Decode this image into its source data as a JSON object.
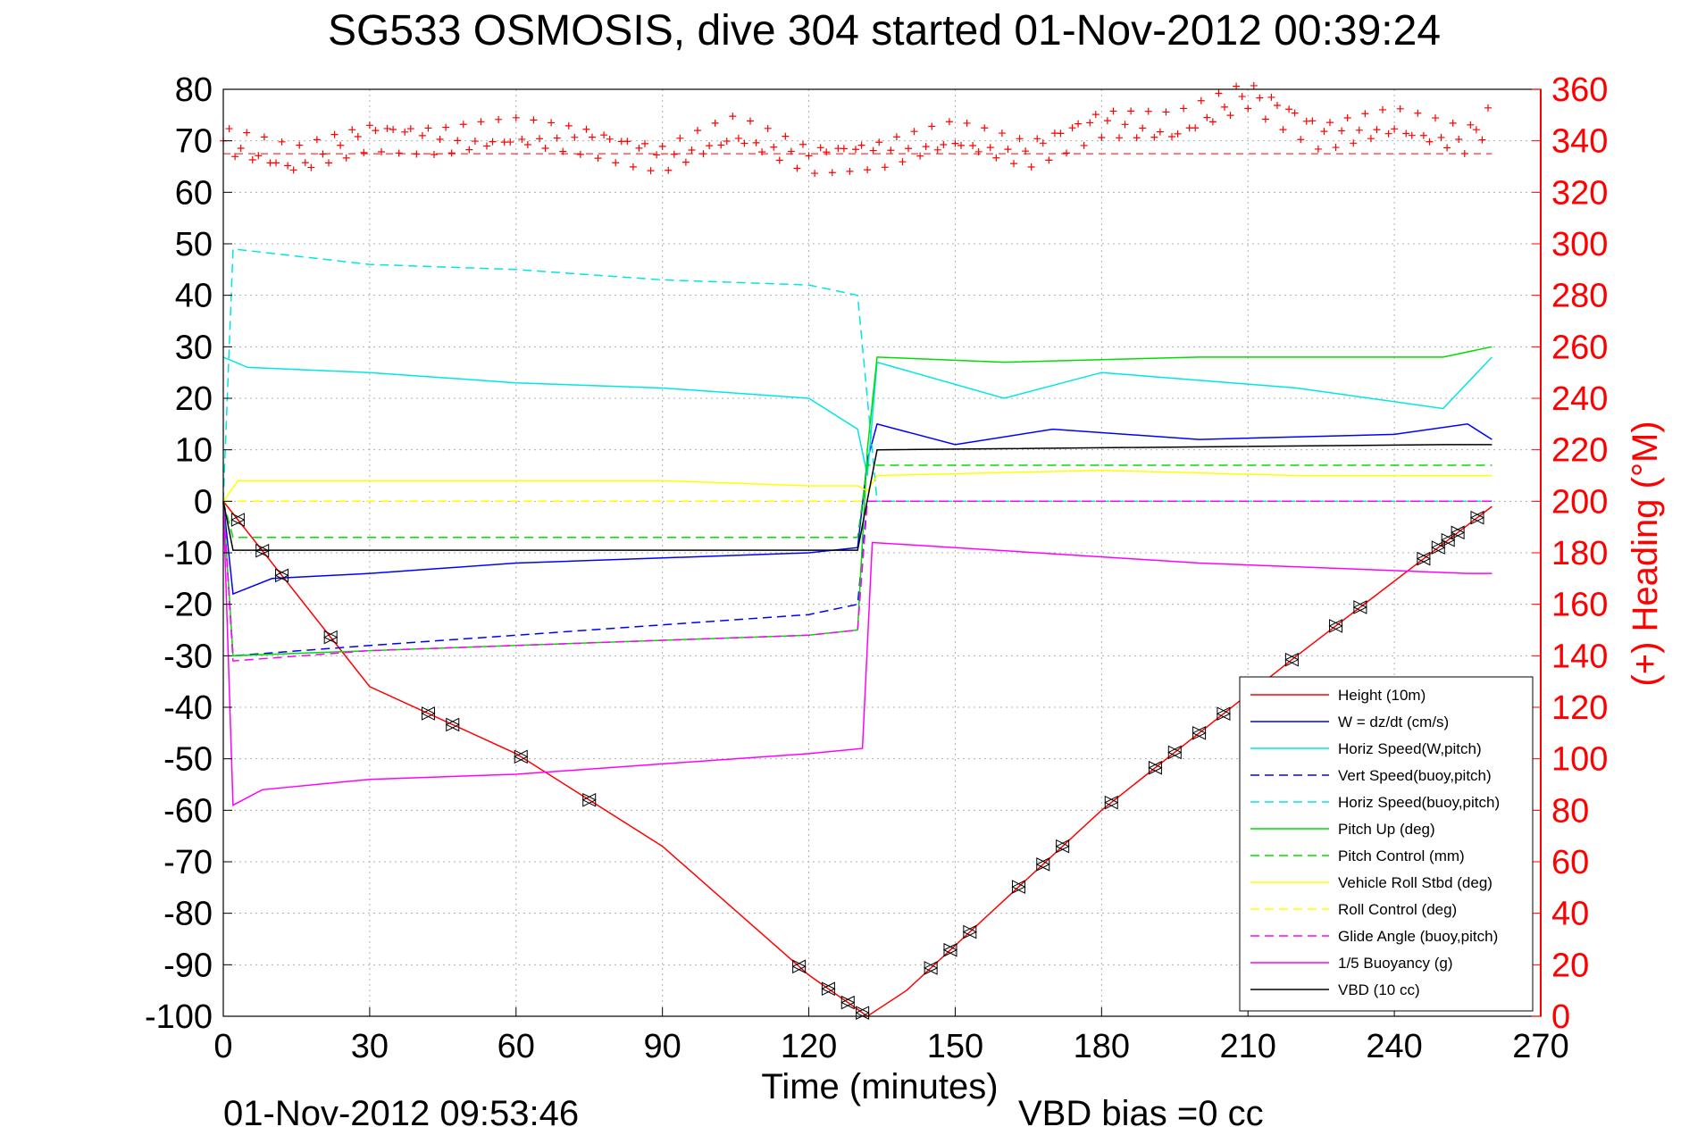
{
  "chart_data": {
    "type": "line",
    "title": "SG533 OSMOSIS, dive 304 started 01-Nov-2012 00:39:24",
    "xlabel": "Time (minutes)",
    "ylabel": "",
    "y2label": "(+) Heading (°M)",
    "footer_date": "01-Nov-2012 09:53:46",
    "footer_note": "VBD bias =0 cc",
    "xlim": [
      0,
      270
    ],
    "ylim": [
      -100,
      80
    ],
    "y2lim": [
      0,
      360
    ],
    "xticks": [
      "0",
      "30",
      "60",
      "90",
      "120",
      "150",
      "180",
      "210",
      "240",
      "270"
    ],
    "yticks": [
      "80",
      "70",
      "60",
      "50",
      "40",
      "30",
      "20",
      "10",
      "0",
      "-10",
      "-20",
      "-30",
      "-40",
      "-50",
      "-60",
      "-70",
      "-80",
      "-90",
      "-100"
    ],
    "y2ticks": [
      "360",
      "340",
      "320",
      "300",
      "280",
      "260",
      "240",
      "220",
      "200",
      "180",
      "160",
      "140",
      "120",
      "100",
      "80",
      "60",
      "40",
      "20",
      "0"
    ],
    "grid": true,
    "legend_position": "bottom-right",
    "series": [
      {
        "name": "Height (10m)",
        "color": "#ff0000",
        "style": "solid",
        "x": [
          0,
          30,
          60,
          90,
          120,
          132,
          140,
          180,
          220,
          260
        ],
        "values": [
          0,
          -36,
          -49,
          -67,
          -92,
          -100,
          -95,
          -60,
          -30,
          -1
        ]
      },
      {
        "name": "W = dz/dt (cm/s)",
        "color": "#0000ff",
        "style": "solid",
        "x": [
          0,
          2,
          10,
          30,
          60,
          90,
          120,
          130,
          132,
          134,
          150,
          170,
          200,
          240,
          255,
          260
        ],
        "values": [
          0,
          -18,
          -15,
          -14,
          -12,
          -11,
          -10,
          -9,
          8,
          15,
          11,
          14,
          12,
          13,
          15,
          12
        ]
      },
      {
        "name": "Horiz Speed(W,pitch)",
        "color": "#00e5e5",
        "style": "solid",
        "x": [
          0,
          5,
          30,
          60,
          90,
          120,
          130,
          132,
          134,
          160,
          180,
          220,
          250,
          260
        ],
        "values": [
          28,
          26,
          25,
          23,
          22,
          20,
          14,
          5,
          27,
          20,
          25,
          22,
          18,
          28
        ]
      },
      {
        "name": "Vert Speed(buoy,pitch)",
        "color": "#0000ff",
        "style": "dashed",
        "x": [
          0,
          2,
          30,
          60,
          90,
          120,
          130,
          132,
          260
        ],
        "values": [
          0,
          -30,
          -28,
          -26,
          -24,
          -22,
          -20,
          0,
          0
        ]
      },
      {
        "name": "Horiz Speed(buoy,pitch)",
        "color": "#00e5e5",
        "style": "dashed",
        "x": [
          0,
          2,
          30,
          60,
          90,
          120,
          130,
          132,
          134,
          260
        ],
        "values": [
          0,
          49,
          46,
          45,
          43,
          42,
          40,
          20,
          0,
          0
        ]
      },
      {
        "name": "Pitch Up (deg)",
        "color": "#00dd00",
        "style": "solid",
        "x": [
          0,
          2,
          30,
          60,
          90,
          120,
          130,
          132,
          134,
          160,
          200,
          250,
          260
        ],
        "values": [
          0,
          -30,
          -29,
          -28,
          -27,
          -26,
          -25,
          10,
          28,
          27,
          28,
          28,
          30
        ]
      },
      {
        "name": "Pitch Control (mm)",
        "color": "#00dd00",
        "style": "dashed",
        "x": [
          0,
          2,
          130,
          132,
          260
        ],
        "values": [
          0,
          -7,
          -7,
          7,
          7
        ]
      },
      {
        "name": "Vehicle Roll Stbd (deg)",
        "color": "#ffff00",
        "style": "solid",
        "x": [
          0,
          3,
          30,
          60,
          90,
          120,
          130,
          132,
          134,
          180,
          220,
          260
        ],
        "values": [
          0,
          4,
          4,
          4,
          4,
          3,
          3,
          2,
          5,
          6,
          5,
          5
        ]
      },
      {
        "name": "Roll Control (deg)",
        "color": "#ffff00",
        "style": "dashed",
        "x": [
          0,
          260
        ],
        "values": [
          0,
          0
        ]
      },
      {
        "name": "Glide Angle (buoy,pitch)",
        "color": "#ff00ff",
        "style": "dashed",
        "x": [
          0,
          2,
          30,
          60,
          90,
          120,
          130,
          132,
          260
        ],
        "values": [
          0,
          -31,
          -29,
          -28,
          -27,
          -26,
          -25,
          0,
          0
        ]
      },
      {
        "name": "1/5 Buoyancy (g)",
        "color": "#ff00ff",
        "style": "solid",
        "x": [
          0,
          2,
          8,
          30,
          60,
          90,
          120,
          131,
          133,
          150,
          200,
          255,
          260
        ],
        "values": [
          0,
          -59,
          -56,
          -54,
          -53,
          -51,
          -49,
          -48,
          -8,
          -9,
          -12,
          -14,
          -14
        ]
      },
      {
        "name": "VBD (10 cc)",
        "color": "#000000",
        "style": "solid",
        "x": [
          0,
          2,
          130,
          134,
          250,
          260
        ],
        "values": [
          0,
          -9.5,
          -9.5,
          10,
          11,
          11
        ]
      }
    ],
    "heading": {
      "name": "(+) Heading",
      "color": "#ff0000",
      "mean": 335,
      "x": [
        0,
        15,
        30,
        45,
        60,
        75,
        90,
        105,
        120,
        135,
        150,
        165,
        180,
        195,
        210,
        225,
        240,
        255,
        260
      ],
      "values": [
        340,
        332,
        342,
        340,
        343,
        340,
        333,
        344,
        333,
        335,
        342,
        335,
        347,
        345,
        358,
        342,
        347,
        340,
        350
      ]
    }
  }
}
